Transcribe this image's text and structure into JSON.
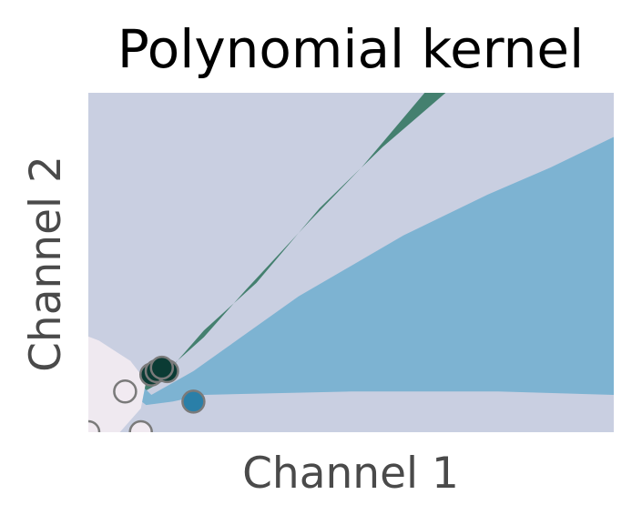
{
  "chart_data": {
    "type": "scatter",
    "title": "Polynomial kernel",
    "xlabel": "Channel 1",
    "ylabel": "Channel 2",
    "xlim": [
      0,
      1
    ],
    "ylim": [
      0,
      1
    ],
    "ticks": "hidden",
    "grid": false,
    "legend": "none",
    "background_regions": [
      {
        "name": "region-light-slate",
        "color": "#c9cfe1"
      },
      {
        "name": "region-dark-green",
        "color": "#44806f"
      },
      {
        "name": "region-blue",
        "color": "#7db3d2"
      },
      {
        "name": "region-near-white",
        "color": "#efe9f0"
      }
    ],
    "decision_regions": {
      "region-dark-green": [
        [
          0.0,
          0.22
        ],
        [
          0.08,
          0.16
        ],
        [
          0.14,
          0.17
        ],
        [
          0.22,
          0.28
        ],
        [
          0.3,
          0.42
        ],
        [
          0.42,
          0.62
        ],
        [
          0.52,
          0.78
        ],
        [
          0.64,
          1.0
        ],
        [
          0.68,
          1.0
        ],
        [
          0.56,
          0.84
        ],
        [
          0.44,
          0.66
        ],
        [
          0.32,
          0.44
        ],
        [
          0.22,
          0.3
        ],
        [
          0.13,
          0.14
        ],
        [
          0.06,
          0.08
        ],
        [
          0.0,
          0.12
        ]
      ],
      "region-blue": [
        [
          0.0,
          0.24
        ],
        [
          0.0,
          0.27
        ],
        [
          0.06,
          0.2
        ],
        [
          0.12,
          0.11
        ],
        [
          0.2,
          0.18
        ],
        [
          0.4,
          0.4
        ],
        [
          0.6,
          0.58
        ],
        [
          0.76,
          0.7
        ],
        [
          0.88,
          0.78
        ],
        [
          1.0,
          0.87
        ],
        [
          1.0,
          0.11
        ],
        [
          0.78,
          0.12
        ],
        [
          0.5,
          0.12
        ],
        [
          0.22,
          0.11
        ],
        [
          0.16,
          0.09
        ],
        [
          0.11,
          0.08
        ],
        [
          0.06,
          0.14
        ]
      ],
      "region-near-white": [
        [
          -0.03,
          0.3
        ],
        [
          0.02,
          0.27
        ],
        [
          0.08,
          0.21
        ],
        [
          0.11,
          0.15
        ],
        [
          0.1,
          0.07
        ],
        [
          0.06,
          0.0
        ],
        [
          -0.03,
          0.0
        ]
      ]
    },
    "series": [
      {
        "color": "#0b3b34",
        "x": [
          0.12,
          0.13,
          0.15,
          0.14
        ],
        "y": [
          0.17,
          0.18,
          0.18,
          0.19
        ]
      },
      {
        "color": "#2a7fa8",
        "x": [
          0.2
        ],
        "y": [
          0.09
        ]
      },
      {
        "color": "#f1eaf1",
        "x": [
          0.07,
          0.0,
          0.1
        ],
        "y": [
          0.12,
          0.0,
          0.0
        ]
      }
    ]
  }
}
